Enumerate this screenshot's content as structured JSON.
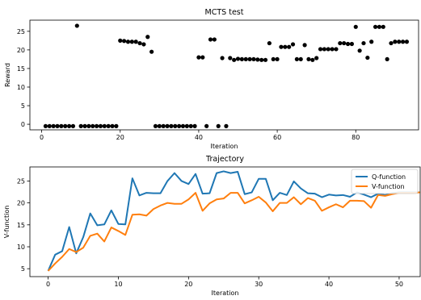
{
  "chart_data": [
    {
      "type": "scatter",
      "title": "MCTS test",
      "xlabel": "Iteration",
      "ylabel": "Reward",
      "xlim": [
        -3,
        96
      ],
      "ylim": [
        -1.5,
        28
      ],
      "xticks": [
        0,
        20,
        40,
        60,
        80
      ],
      "yticks": [
        0,
        5,
        10,
        15,
        20,
        25
      ],
      "grid": false,
      "marker_color": "#000000",
      "x": [
        1,
        2,
        3,
        4,
        5,
        6,
        7,
        8,
        9,
        10,
        11,
        12,
        13,
        14,
        15,
        16,
        17,
        18,
        19,
        20,
        21,
        22,
        23,
        24,
        25,
        26,
        27,
        28,
        29,
        30,
        31,
        32,
        33,
        34,
        35,
        36,
        37,
        38,
        39,
        40,
        41,
        42,
        43,
        44,
        45,
        46,
        47,
        48,
        49,
        50,
        51,
        52,
        53,
        54,
        55,
        56,
        57,
        58,
        59,
        60,
        61,
        62,
        63,
        64,
        65,
        66,
        67,
        68,
        69,
        70,
        71,
        72,
        73,
        74,
        75,
        76,
        77,
        78,
        79,
        80,
        81,
        82,
        83,
        84,
        85,
        86,
        87,
        88,
        89,
        90,
        91,
        92,
        93
      ],
      "y": [
        -0.5,
        -0.5,
        -0.5,
        -0.5,
        -0.5,
        -0.5,
        -0.5,
        -0.5,
        26.5,
        -0.5,
        -0.5,
        -0.5,
        -0.5,
        -0.5,
        -0.5,
        -0.5,
        -0.5,
        -0.5,
        -0.5,
        22.5,
        22.4,
        22.2,
        22.2,
        22.2,
        21.8,
        21.5,
        23.5,
        19.5,
        -0.5,
        -0.5,
        -0.5,
        -0.5,
        -0.5,
        -0.5,
        -0.5,
        -0.5,
        -0.5,
        -0.5,
        -0.5,
        18.0,
        18.0,
        -0.5,
        22.8,
        22.8,
        -0.5,
        17.8,
        -0.5,
        17.8,
        17.3,
        17.6,
        17.5,
        17.5,
        17.5,
        17.5,
        17.4,
        17.3,
        17.3,
        21.8,
        17.5,
        17.5,
        20.8,
        20.8,
        20.8,
        21.5,
        17.5,
        17.5,
        21.3,
        17.5,
        17.3,
        17.8,
        20.2,
        20.2,
        20.2,
        20.2,
        20.2,
        21.8,
        21.8,
        21.6,
        21.6,
        26.2,
        19.8,
        21.8,
        17.9,
        22.2,
        26.2,
        26.2,
        26.2,
        17.5,
        21.8,
        22.2,
        22.2,
        22.2,
        22.2
      ]
    },
    {
      "type": "line",
      "title": "Trajectory",
      "xlabel": "Iteration",
      "ylabel": "V-function",
      "xlim": [
        -2.6,
        53
      ],
      "ylim": [
        3.2,
        28.2
      ],
      "xticks": [
        0,
        10,
        20,
        30,
        40,
        50
      ],
      "yticks": [
        5,
        10,
        15,
        20,
        25
      ],
      "grid": false,
      "legend_position": "top-right",
      "x": [
        0,
        1,
        2,
        3,
        4,
        5,
        6,
        7,
        8,
        9,
        10,
        11,
        12,
        13,
        14,
        15,
        16,
        17,
        18,
        19,
        20,
        21,
        22,
        23,
        24,
        25,
        26,
        27,
        28,
        29,
        30,
        31,
        32,
        33,
        34,
        35,
        36,
        37,
        38,
        39,
        40,
        41,
        42,
        43,
        44,
        45,
        46,
        47,
        48,
        49,
        50,
        51,
        52,
        53
      ],
      "series": [
        {
          "name": "Q-function",
          "color": "#1f77b4",
          "values": [
            4.5,
            8.2,
            9.0,
            14.5,
            8.5,
            12.2,
            17.6,
            14.9,
            15.1,
            18.3,
            15.2,
            15.1,
            25.6,
            21.7,
            22.3,
            22.2,
            22.2,
            25.0,
            26.8,
            25.0,
            24.3,
            26.6,
            22.1,
            22.2,
            26.8,
            27.2,
            26.8,
            27.1,
            22.0,
            22.4,
            25.5,
            25.5,
            20.6,
            22.3,
            21.8,
            24.9,
            23.3,
            22.2,
            22.1,
            21.3,
            21.9,
            21.7,
            21.8,
            21.4,
            22.4,
            21.9,
            21.3,
            22.1,
            21.8,
            22.2,
            22.4,
            22.4,
            22.4,
            22.4
          ]
        },
        {
          "name": "V-function",
          "color": "#ff7f0e",
          "values": [
            4.5,
            6.2,
            7.7,
            9.5,
            8.8,
            9.8,
            12.5,
            13.0,
            11.2,
            14.4,
            13.6,
            12.7,
            17.3,
            17.4,
            17.1,
            18.6,
            19.4,
            20.0,
            19.8,
            19.8,
            20.8,
            22.3,
            18.2,
            19.9,
            20.8,
            21.0,
            22.3,
            22.3,
            19.9,
            20.6,
            21.4,
            20.1,
            18.1,
            20.0,
            20.0,
            21.3,
            19.7,
            21.1,
            20.5,
            18.2,
            19.0,
            19.7,
            19.0,
            20.5,
            20.5,
            20.4,
            18.9,
            21.8,
            21.6,
            22.0,
            22.3,
            22.3,
            22.3,
            22.4
          ]
        }
      ]
    }
  ]
}
